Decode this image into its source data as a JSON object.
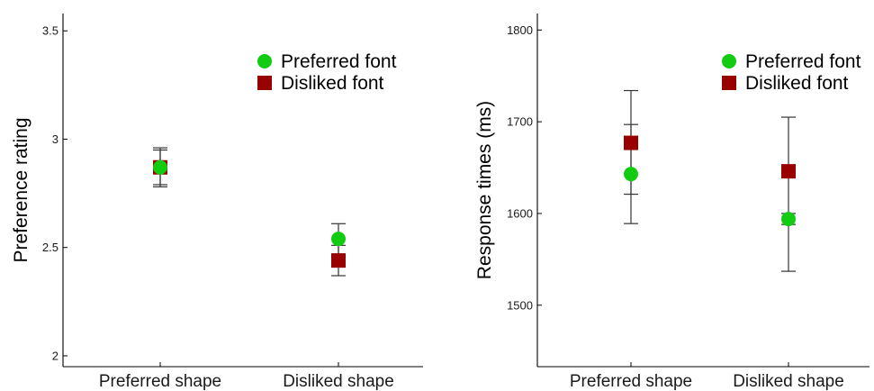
{
  "chart_data": [
    {
      "type": "scatter",
      "ylabel": "Preference rating",
      "categories": [
        "Preferred shape",
        "Disliked shape"
      ],
      "ylim": [
        1.95,
        3.58
      ],
      "yticks": [
        2,
        2.5,
        3,
        3.5
      ],
      "ytick_labels": [
        "2",
        "2.5",
        "3",
        "3.5"
      ],
      "legend": "top-right",
      "grid": false,
      "series": [
        {
          "name": "Preferred font",
          "marker": "circle",
          "color": "#11cc11",
          "values": [
            2.87,
            2.54
          ],
          "err_low": [
            2.79,
            2.47
          ],
          "err_high": [
            2.95,
            2.61
          ]
        },
        {
          "name": "Disliked font",
          "marker": "square",
          "color": "#990000",
          "values": [
            2.87,
            2.44
          ],
          "err_low": [
            2.78,
            2.37
          ],
          "err_high": [
            2.96,
            2.51
          ]
        }
      ]
    },
    {
      "type": "scatter",
      "ylabel": "Response times (ms)",
      "categories": [
        "Preferred shape",
        "Disliked shape"
      ],
      "ylim": [
        1433,
        1818
      ],
      "yticks": [
        1500,
        1600,
        1700,
        1800
      ],
      "ytick_labels": [
        "1500",
        "1600",
        "1700",
        "1800"
      ],
      "legend": "top-right",
      "grid": false,
      "series": [
        {
          "name": "Preferred font",
          "marker": "circle",
          "color": "#11cc11",
          "values": [
            1643,
            1594
          ],
          "err_low": [
            1589,
            1588
          ],
          "err_high": [
            1697,
            1600
          ]
        },
        {
          "name": "Disliked font",
          "marker": "square",
          "color": "#990000",
          "values": [
            1677,
            1646
          ],
          "err_low": [
            1621,
            1537
          ],
          "err_high": [
            1734,
            1705
          ]
        }
      ]
    }
  ]
}
